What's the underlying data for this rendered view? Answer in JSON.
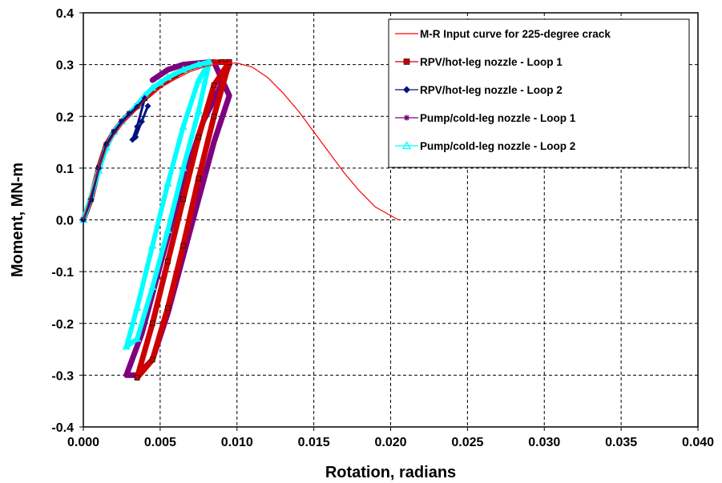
{
  "chart_data": {
    "type": "line",
    "title": "",
    "xlabel": "Rotation, radians",
    "ylabel": "Moment, MN-m",
    "xlim": [
      0,
      0.04
    ],
    "ylim": [
      -0.4,
      0.4
    ],
    "xticks": [
      0,
      0.005,
      0.01,
      0.015,
      0.02,
      0.025,
      0.03,
      0.035,
      0.04
    ],
    "yticks": [
      -0.4,
      -0.3,
      -0.2,
      -0.1,
      0,
      0.1,
      0.2,
      0.3,
      0.4
    ],
    "xtick_labels": [
      "0.000",
      "0.005",
      "0.010",
      "0.015",
      "0.020",
      "0.025",
      "0.030",
      "0.035",
      "0.040"
    ],
    "ytick_labels": [
      "-0.4",
      "-0.3",
      "-0.2",
      "-0.1",
      "0.0",
      "0.1",
      "0.2",
      "0.3",
      "0.4"
    ],
    "grid": true,
    "legend_position": "top-right",
    "series": [
      {
        "name": "M-R Input curve for 225-degree crack",
        "color": "#ff0000",
        "marker": "none",
        "x": [
          0,
          0.0005,
          0.001,
          0.0015,
          0.002,
          0.0025,
          0.003,
          0.0035,
          0.004,
          0.005,
          0.006,
          0.007,
          0.008,
          0.009,
          0.01,
          0.011,
          0.012,
          0.013,
          0.014,
          0.015,
          0.016,
          0.017,
          0.018,
          0.019,
          0.0205
        ],
        "y": [
          0,
          0.05,
          0.1,
          0.14,
          0.165,
          0.185,
          0.2,
          0.215,
          0.232,
          0.255,
          0.272,
          0.287,
          0.297,
          0.302,
          0.303,
          0.295,
          0.275,
          0.245,
          0.21,
          0.17,
          0.13,
          0.09,
          0.055,
          0.025,
          0
        ]
      },
      {
        "name": "RPV/hot-leg nozzle - Loop 1",
        "color": "#cc0000",
        "marker": "square",
        "x": [
          0,
          0.0005,
          0.001,
          0.0015,
          0.002,
          0.0025,
          0.003,
          0.0035,
          0.004,
          0.005,
          0.006,
          0.007,
          0.008,
          0.009,
          0.0095,
          0.0085,
          0.0075,
          0.0065,
          0.0055,
          0.0045,
          0.0035,
          0.0035,
          0.0045,
          0.0055,
          0.0065,
          0.0075,
          0.0085,
          0.0095
        ],
        "y": [
          0,
          0.04,
          0.1,
          0.145,
          0.17,
          0.19,
          0.205,
          0.22,
          0.235,
          0.26,
          0.28,
          0.295,
          0.303,
          0.305,
          0.305,
          0.2,
          0.08,
          -0.05,
          -0.17,
          -0.27,
          -0.305,
          -0.305,
          -0.2,
          -0.08,
          0.04,
          0.16,
          0.26,
          0.305
        ]
      },
      {
        "name": "RPV/hot-leg nozzle - Loop 2",
        "color": "#00137f",
        "marker": "diamond",
        "x": [
          0,
          0.0005,
          0.001,
          0.0015,
          0.002,
          0.0025,
          0.003,
          0.0035,
          0.004,
          0.0035,
          0.0032,
          0.0034,
          0.0038,
          0.0042
        ],
        "y": [
          0,
          0.04,
          0.1,
          0.145,
          0.17,
          0.19,
          0.205,
          0.218,
          0.235,
          0.18,
          0.155,
          0.16,
          0.19,
          0.22
        ]
      },
      {
        "name": "Pump/cold-leg nozzle - Loop 1",
        "color": "#7f007f",
        "marker": "star",
        "x": [
          0.0045,
          0.0055,
          0.0065,
          0.0075,
          0.0085,
          0.0095,
          0.0085,
          0.0075,
          0.0065,
          0.0055,
          0.0045,
          0.0035,
          0.0028,
          0.0038,
          0.0048,
          0.0058,
          0.0068,
          0.0078,
          0.0088,
          0.0095
        ],
        "y": [
          0.27,
          0.29,
          0.3,
          0.303,
          0.305,
          0.24,
          0.15,
          0.04,
          -0.07,
          -0.18,
          -0.27,
          -0.3,
          -0.3,
          -0.22,
          -0.11,
          0.0,
          0.1,
          0.19,
          0.25,
          0.3
        ]
      },
      {
        "name": "Pump/cold-leg nozzle - Loop 2",
        "color": "#00ffff",
        "marker": "triangle",
        "x": [
          0,
          0.0005,
          0.001,
          0.0015,
          0.002,
          0.0025,
          0.003,
          0.0035,
          0.004,
          0.0045,
          0.005,
          0.0055,
          0.0065,
          0.0075,
          0.0082,
          0.0075,
          0.0065,
          0.0055,
          0.0045,
          0.0035,
          0.0028,
          0.0035,
          0.0045,
          0.0055,
          0.0065,
          0.0075,
          0.0082
        ],
        "y": [
          0,
          0.045,
          0.095,
          0.14,
          0.17,
          0.19,
          0.205,
          0.222,
          0.24,
          0.255,
          0.265,
          0.275,
          0.29,
          0.3,
          0.305,
          0.21,
          0.1,
          -0.02,
          -0.13,
          -0.23,
          -0.245,
          -0.17,
          -0.05,
          0.07,
          0.18,
          0.27,
          0.305
        ]
      }
    ]
  }
}
